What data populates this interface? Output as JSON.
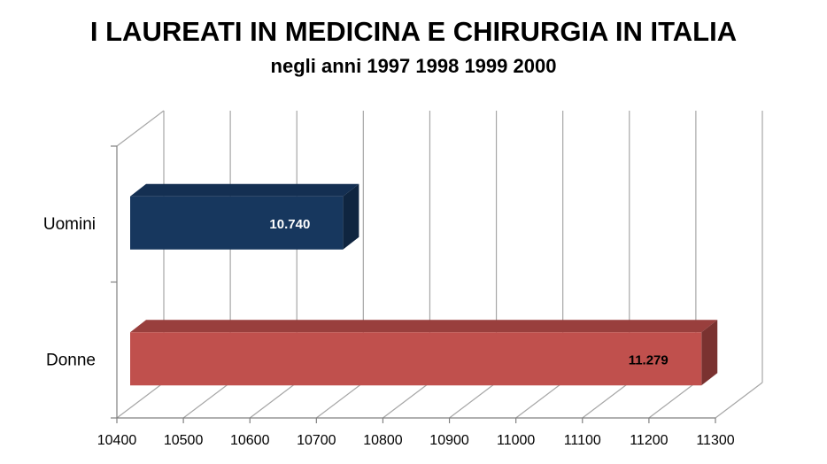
{
  "chart_data": {
    "type": "bar",
    "orientation": "horizontal",
    "style": "3d",
    "title": "I LAUREATI IN MEDICINA E CHIRURGIA IN ITALIA",
    "subtitle": "negli anni 1997 1998 1999 2000",
    "categories": [
      "Uomini",
      "Donne"
    ],
    "values": [
      10740,
      11279
    ],
    "data_labels": [
      "10.740",
      "11.279"
    ],
    "xlim": [
      10400,
      11300
    ],
    "xticks": [
      "10400",
      "10500",
      "10600",
      "10700",
      "10800",
      "10900",
      "11000",
      "11100",
      "11200",
      "11300"
    ],
    "grid": true,
    "legend": "none",
    "colors": {
      "Uomini": {
        "front": "#17375e",
        "top": "#142f52",
        "side": "#0f2540",
        "label": "#ffffff"
      },
      "Donne": {
        "front": "#c0504d",
        "top": "#993f3d",
        "side": "#7a3230",
        "label": "#000000"
      },
      "grid": "#a6a6a6",
      "axis": "#808080"
    }
  }
}
